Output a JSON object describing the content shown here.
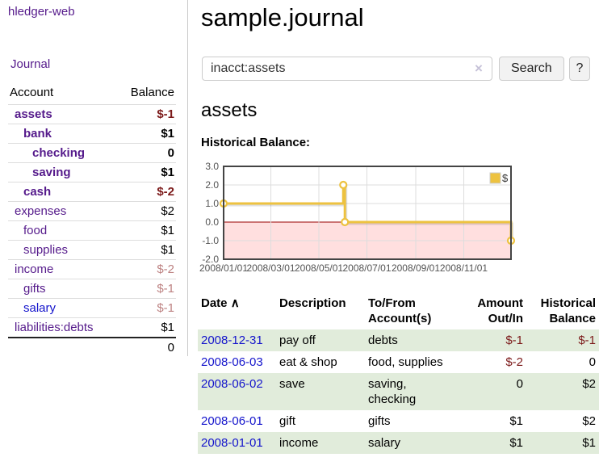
{
  "app": {
    "logo": "hledger-web"
  },
  "sidebar": {
    "journal_link": "Journal",
    "accounts_header": {
      "account": "Account",
      "balance": "Balance"
    },
    "accounts": [
      {
        "name": "assets",
        "balance": "$-1",
        "depth": 1,
        "bold": true
      },
      {
        "name": "bank",
        "balance": "$1",
        "depth": 2,
        "bold": true
      },
      {
        "name": "checking",
        "balance": "0",
        "depth": 3,
        "bold": true
      },
      {
        "name": "saving",
        "balance": "$1",
        "depth": 3,
        "bold": true
      },
      {
        "name": "cash",
        "balance": "$-2",
        "depth": 2,
        "bold": true
      },
      {
        "name": "expenses",
        "balance": "$2",
        "depth": 1,
        "bold": false
      },
      {
        "name": "food",
        "balance": "$1",
        "depth": 2,
        "bold": false
      },
      {
        "name": "supplies",
        "balance": "$1",
        "depth": 2,
        "bold": false
      },
      {
        "name": "income",
        "balance": "$-2",
        "depth": 1,
        "bold": false
      },
      {
        "name": "gifts",
        "balance": "$-1",
        "depth": 2,
        "bold": false
      },
      {
        "name": "salary",
        "balance": "$-1",
        "depth": 2,
        "bold": false,
        "blue_link": true
      },
      {
        "name": "liabilities:debts",
        "balance": "$1",
        "depth": 1,
        "bold": false
      }
    ],
    "total": "0"
  },
  "header": {
    "title": "sample.journal"
  },
  "search": {
    "query": "inacct:assets",
    "clear_icon": "×",
    "search_label": "Search",
    "help_label": "?"
  },
  "account_page": {
    "heading": "assets",
    "chart_label": "Historical Balance:"
  },
  "chart_data": {
    "type": "line",
    "style": "step",
    "title": "Historical Balance",
    "series": [
      {
        "name": "$",
        "color": "#edc240",
        "points": [
          [
            "2008-01-01",
            1
          ],
          [
            "2008-06-01",
            2
          ],
          [
            "2008-06-03",
            0
          ],
          [
            "2008-12-31",
            -1
          ]
        ]
      }
    ],
    "xlim": [
      "2008-01-01",
      "2008-12-31"
    ],
    "ylim": [
      -2,
      3
    ],
    "ytick_labels": [
      "3.0",
      "2.0",
      "1.0",
      "0.0",
      "-1.0",
      "-2.0"
    ],
    "xtick_labels": [
      "2008/01/01",
      "2008/03/01",
      "2008/05/01",
      "2008/07/01",
      "2008/09/01",
      "2008/11/01"
    ],
    "legend": {
      "label": "$",
      "position": "top-right"
    },
    "grid": true,
    "gridline_color": "#dddddd",
    "border_color": "#444444",
    "tick_color": "#545454",
    "negative_region_color": "#ffdfdf",
    "zero_line_color": "#990000",
    "marker": {
      "shape": "circle",
      "fill": "#ffffff"
    }
  },
  "register": {
    "columns": {
      "date": "Date",
      "sort_icon": "∧",
      "description": "Description",
      "accounts": "To/From Account(s)",
      "amount": "Amount Out/In",
      "balance": "Historical Balance"
    },
    "rows": [
      {
        "date": "2008-12-31",
        "description": "pay off",
        "accounts": "debts",
        "amount": "$-1",
        "balance": "$-1"
      },
      {
        "date": "2008-06-03",
        "description": "eat & shop",
        "accounts": "food, supplies",
        "amount": "$-2",
        "balance": "0"
      },
      {
        "date": "2008-06-02",
        "description": "save",
        "accounts": "saving, checking",
        "amount": "0",
        "balance": "$2"
      },
      {
        "date": "2008-06-01",
        "description": "gift",
        "accounts": "gifts",
        "amount": "$1",
        "balance": "$2"
      },
      {
        "date": "2008-01-01",
        "description": "income",
        "accounts": "salary",
        "amount": "$1",
        "balance": "$1"
      }
    ]
  },
  "colors": {
    "link_purple": "#551a8b",
    "link_blue": "#1414cc",
    "negative_strong": "#7c1a1a",
    "negative_muted": "#bd8282",
    "row_stripe_green": "#e1ecdb"
  }
}
